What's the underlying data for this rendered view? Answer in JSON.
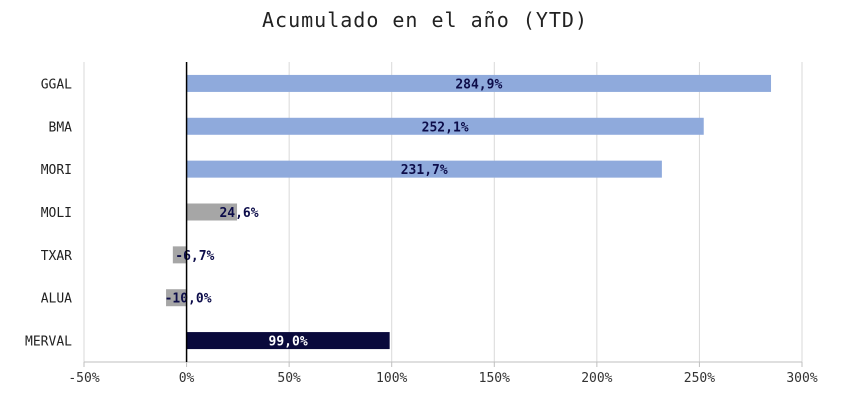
{
  "chart_data": {
    "type": "bar",
    "orientation": "horizontal",
    "title": "Acumulado en el año (YTD)",
    "xlabel": "",
    "ylabel": "",
    "categories": [
      "GGAL",
      "BMA",
      "MORI",
      "MOLI",
      "TXAR",
      "ALUA",
      "MERVAL"
    ],
    "values": [
      284.9,
      252.1,
      231.7,
      24.6,
      -6.7,
      -10.0,
      99.0
    ],
    "data_labels": [
      "284,9%",
      "252,1%",
      "231,7%",
      "24,6%",
      "-6,7%",
      "-10,0%",
      "99,0%"
    ],
    "xlim": [
      -50,
      300
    ],
    "x_ticks": [
      -50,
      0,
      50,
      100,
      150,
      200,
      250,
      300
    ],
    "x_tick_labels": [
      "-50%",
      "0%",
      "50%",
      "100%",
      "150%",
      "200%",
      "250%",
      "300%"
    ],
    "grid": "vertical",
    "legend": "none",
    "bar_colors": [
      "#8faadc",
      "#8faadc",
      "#8faadc",
      "#a6a6a6",
      "#a6a6a6",
      "#a6a6a6",
      "#0a0a3c"
    ],
    "label_color_default": "#0d0d4a",
    "label_color_on_dark": "#ffffff",
    "gridline_color": "#d9d9d9",
    "zero_line_color": "#000000"
  }
}
